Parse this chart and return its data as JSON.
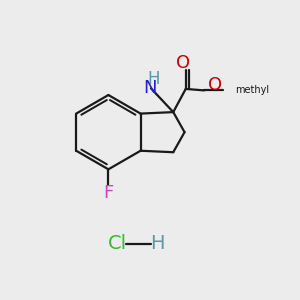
{
  "bg_color": "#ececec",
  "bond_color": "#1a1a1a",
  "line_width": 1.6,
  "atom_colors": {
    "O": "#cc0000",
    "N": "#2222cc",
    "F": "#cc44bb",
    "Cl": "#33bb33",
    "H": "#5599aa",
    "C": "#1a1a1a"
  },
  "font_size": 12,
  "hcl_font_size": 13
}
